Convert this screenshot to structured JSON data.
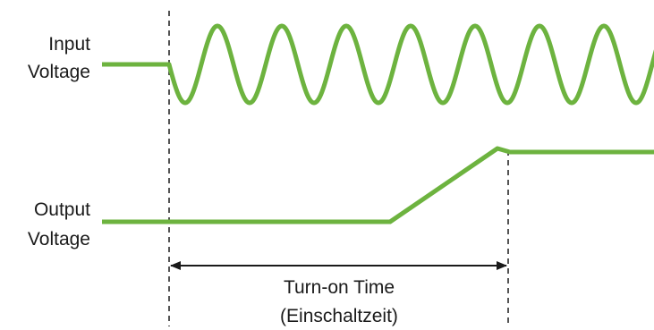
{
  "labels": {
    "input_line1": "Input",
    "input_line2": "Voltage",
    "output_line1": "Output",
    "output_line2": "Voltage",
    "time_line1": "Turn-on Time",
    "time_line2": "(Einschaltzeit)"
  },
  "colors": {
    "signal": "#6db33f",
    "marker": "#1a1a1a",
    "background": "#ffffff"
  }
}
